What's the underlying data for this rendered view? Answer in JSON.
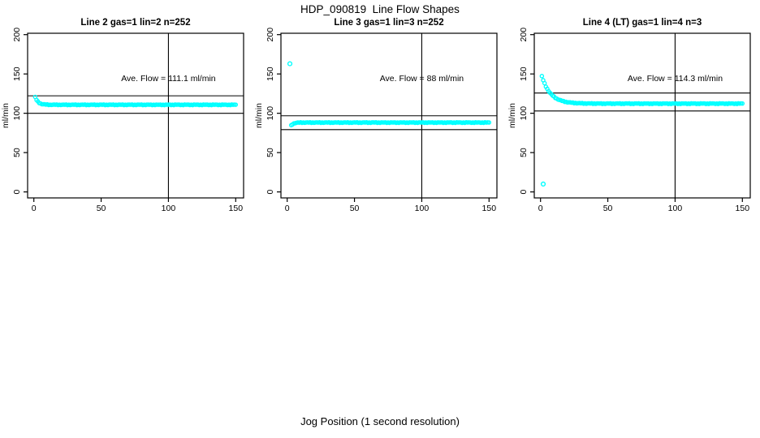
{
  "page_title": "HDP_090819  Line Flow Shapes",
  "outer_xlabel": "Jog Position (1 second resolution)",
  "colors": {
    "points": "#00FFFF",
    "axis": "#000000",
    "background": "#FFFFFF",
    "text": "#000000"
  },
  "chart_data": [
    {
      "type": "scatter",
      "title": "Line 2 gas=1 lin=2 n=252",
      "ylabel": "ml/min",
      "xticks": [
        0,
        50,
        100,
        150
      ],
      "yticks": [
        0,
        50,
        100,
        150,
        200
      ],
      "xlim": [
        0,
        150
      ],
      "ylim": [
        0,
        200
      ],
      "grid": false,
      "vline_x": 100,
      "hlines": [
        122.2,
        100.0
      ],
      "ave_flow": 111.1,
      "ave_flow_text": "Ave. Flow =  111.1  ml/min",
      "n": 252,
      "series": {
        "x_start": 1,
        "x_end": 150,
        "y_start": 120.5,
        "y_flat": 110.8,
        "tau": 2.2,
        "noise": 0.5
      },
      "outliers": []
    },
    {
      "type": "scatter",
      "title": "Line 3 gas=1 lin=3 n=252",
      "ylabel": "ml/min",
      "xticks": [
        0,
        50,
        100,
        150
      ],
      "yticks": [
        0,
        50,
        100,
        150,
        200
      ],
      "xlim": [
        0,
        150
      ],
      "ylim": [
        0,
        200
      ],
      "grid": false,
      "vline_x": 100,
      "hlines": [
        96.8,
        79.2
      ],
      "ave_flow": 88,
      "ave_flow_text": "Ave. Flow =  88  ml/min",
      "n": 252,
      "series": {
        "x_start": 3,
        "x_end": 150,
        "y_start": 84.5,
        "y_flat": 88.2,
        "tau": 1.6,
        "noise": 0.5
      },
      "outliers": [
        [
          2,
          163
        ]
      ]
    },
    {
      "type": "scatter",
      "title": "Line 4 (LT) gas=1 lin=4 n=3",
      "ylabel": "ml/min",
      "xticks": [
        0,
        50,
        100,
        150
      ],
      "yticks": [
        0,
        50,
        100,
        150,
        200
      ],
      "xlim": [
        0,
        150
      ],
      "ylim": [
        0,
        200
      ],
      "grid": false,
      "vline_x": 100,
      "hlines": [
        125.7,
        102.9
      ],
      "ave_flow": 114.3,
      "ave_flow_text": "Ave. Flow =  114.3  ml/min",
      "n": 3,
      "series": {
        "x_start": 1,
        "x_end": 150,
        "y_start": 147.0,
        "y_flat": 112.3,
        "tau": 6.5,
        "noise": 0.55
      },
      "outliers": [
        [
          2,
          10
        ]
      ]
    }
  ]
}
